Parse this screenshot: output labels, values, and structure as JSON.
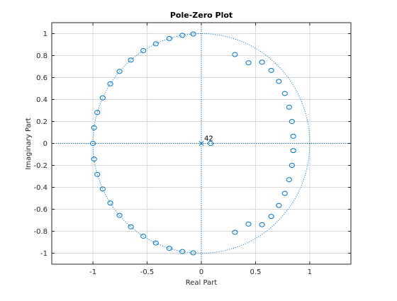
{
  "chart_data": {
    "type": "scatter",
    "title": "Pole-Zero Plot",
    "xlabel": "Real Part",
    "ylabel": "Imaginary Part",
    "xlim": [
      -1.38,
      1.38
    ],
    "ylim": [
      -1.1,
      1.1
    ],
    "x_ticks": [
      -1,
      -0.5,
      0,
      0.5,
      1
    ],
    "x_tick_labels": [
      "-1",
      "-0.5",
      "0",
      "0.5",
      "1"
    ],
    "y_ticks": [
      1,
      0.8,
      0.6,
      0.4,
      0.2,
      0,
      -0.2,
      -0.4,
      -0.6,
      -0.8,
      -1
    ],
    "y_tick_labels": [
      "1",
      "0.8",
      "0.6",
      "0.4",
      "0.2",
      "0",
      "-0.2",
      "-0.4",
      "-0.6",
      "-0.8",
      "-1"
    ],
    "grid": true,
    "unit_circle": true,
    "colors": {
      "marker": "#0072bd",
      "grid": "#d9d9d9",
      "axes": "#262626"
    },
    "zeros": [
      {
        "x": 0.085,
        "y": 0.0
      },
      {
        "x": 0.848,
        "y": 0.065
      },
      {
        "x": 0.848,
        "y": -0.065
      },
      {
        "x": 0.836,
        "y": 0.2
      },
      {
        "x": 0.836,
        "y": -0.2
      },
      {
        "x": 0.81,
        "y": 0.33
      },
      {
        "x": 0.81,
        "y": -0.33
      },
      {
        "x": 0.77,
        "y": 0.455
      },
      {
        "x": 0.77,
        "y": -0.455
      },
      {
        "x": 0.715,
        "y": 0.565
      },
      {
        "x": 0.715,
        "y": -0.565
      },
      {
        "x": 0.645,
        "y": 0.665
      },
      {
        "x": 0.645,
        "y": -0.665
      },
      {
        "x": 0.56,
        "y": 0.74
      },
      {
        "x": 0.56,
        "y": -0.74
      },
      {
        "x": 0.435,
        "y": 0.735
      },
      {
        "x": 0.435,
        "y": -0.735
      },
      {
        "x": 0.31,
        "y": 0.81
      },
      {
        "x": 0.31,
        "y": -0.81
      },
      {
        "x": -0.075,
        "y": 0.997
      },
      {
        "x": -0.075,
        "y": -0.997
      },
      {
        "x": -0.175,
        "y": 0.985
      },
      {
        "x": -0.175,
        "y": -0.985
      },
      {
        "x": -0.295,
        "y": 0.956
      },
      {
        "x": -0.295,
        "y": -0.956
      },
      {
        "x": -0.42,
        "y": 0.907
      },
      {
        "x": -0.42,
        "y": -0.907
      },
      {
        "x": -0.535,
        "y": 0.845
      },
      {
        "x": -0.535,
        "y": -0.845
      },
      {
        "x": -0.65,
        "y": 0.76
      },
      {
        "x": -0.65,
        "y": -0.76
      },
      {
        "x": -0.755,
        "y": 0.656
      },
      {
        "x": -0.755,
        "y": -0.656
      },
      {
        "x": -0.84,
        "y": 0.543
      },
      {
        "x": -0.84,
        "y": -0.543
      },
      {
        "x": -0.91,
        "y": 0.415
      },
      {
        "x": -0.91,
        "y": -0.415
      },
      {
        "x": -0.96,
        "y": 0.282
      },
      {
        "x": -0.96,
        "y": -0.282
      },
      {
        "x": -0.99,
        "y": 0.143
      },
      {
        "x": -0.99,
        "y": -0.143
      },
      {
        "x": -1.0,
        "y": 0.0
      }
    ],
    "poles": [
      {
        "x": 0.0,
        "y": 0.0,
        "multiplicity_label": "42"
      }
    ]
  }
}
